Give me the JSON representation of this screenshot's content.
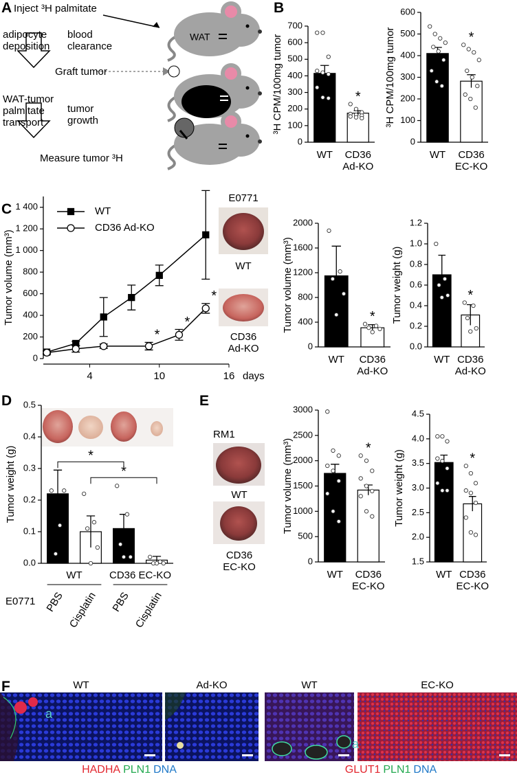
{
  "panel_labels": [
    "A",
    "B",
    "C",
    "D",
    "E",
    "F"
  ],
  "schematic": {
    "steps": [
      "Inject ³H palmitate",
      "Graft tumor",
      "Measure tumor ³H"
    ],
    "left_arrows": [
      "adipocyte deposition",
      "WAT-tumor palmitate transport"
    ],
    "right_arrows": [
      "blood clearance",
      "tumor growth"
    ],
    "wat": "WAT"
  },
  "photos": {
    "c_title": "E0771",
    "c_labels": [
      "WT",
      "CD36 Ad-KO"
    ],
    "e_title": "RM1",
    "e_labels": [
      "WT",
      "CD36 EC-KO"
    ]
  },
  "micrographs": {
    "labels": [
      "WT",
      "Ad-KO",
      "WT",
      "EC-KO"
    ],
    "inset": [
      "a",
      "a"
    ],
    "stains_left": [
      "HADHA",
      "PLN1",
      "DNA"
    ],
    "stains_right": [
      "GLUT1",
      "PLN1",
      "DNA"
    ],
    "stain_colors": [
      "#e3262e",
      "#22a94f",
      "#1e78c8"
    ]
  },
  "chart_data": [
    {
      "type": "bar",
      "ylabel": "³H CPM/100mg tumor",
      "categories": [
        "WT",
        "CD36 Ad-KO"
      ],
      "values": [
        415,
        175
      ],
      "errors": [
        48,
        15
      ],
      "points": [
        [
          660,
          660,
          515,
          430,
          420,
          410,
          330,
          270,
          265
        ],
        [
          230,
          200,
          180,
          170,
          165,
          160,
          155,
          150,
          145
        ]
      ],
      "colors": [
        "#000000",
        "#ffffff"
      ],
      "ylim": [
        0,
        700
      ],
      "yticks": [
        0,
        100,
        200,
        300,
        400,
        500,
        600,
        700
      ],
      "annotations": [
        "*"
      ]
    },
    {
      "type": "bar",
      "ylabel": "³H CPM/100mg tumor",
      "categories": [
        "WT",
        "CD36 EC-KO"
      ],
      "values": [
        410,
        282
      ],
      "errors": [
        28,
        30
      ],
      "points": [
        [
          535,
          500,
          480,
          460,
          440,
          420,
          380,
          330,
          280,
          260
        ],
        [
          450,
          430,
          415,
          380,
          330,
          300,
          260,
          220,
          200,
          160
        ]
      ],
      "colors": [
        "#000000",
        "#ffffff"
      ],
      "ylim": [
        0,
        600
      ],
      "yticks": [
        0,
        100,
        200,
        300,
        400,
        500,
        600
      ],
      "annotations": [
        "*"
      ]
    },
    {
      "type": "line",
      "ylabel": "Tumor volume (mm³)",
      "xlabel": "days",
      "xlim": [
        0,
        16
      ],
      "xticks": [
        4,
        10,
        16
      ],
      "ylim": [
        0,
        1500
      ],
      "yticks": [
        0,
        200,
        400,
        600,
        800,
        {
          "value": 1000,
          "label": "1 000"
        },
        {
          "value": 1200,
          "label": "1 200"
        },
        {
          "value": 1400,
          "label": "1 400"
        }
      ],
      "legend": "upper left",
      "series": [
        {
          "name": "WT",
          "color": "#000000",
          "marker": "square",
          "fill": "#000000",
          "x": [
            0.3,
            2.8,
            5.2,
            7.6,
            10,
            14
          ],
          "values": [
            60,
            140,
            385,
            565,
            770,
            1145
          ],
          "errors": [
            10,
            20,
            180,
            115,
            95,
            410
          ]
        },
        {
          "name": "CD36 Ad-KO",
          "color": "#000000",
          "marker": "circle",
          "fill": "#ffffff",
          "x": [
            0.3,
            2.8,
            5.2,
            9.1,
            11.7,
            14
          ],
          "values": [
            55,
            90,
            115,
            115,
            220,
            465
          ],
          "errors": [
            15,
            30,
            20,
            35,
            50,
            45
          ]
        }
      ],
      "annotations": [
        "*",
        "*",
        "*"
      ]
    },
    {
      "type": "bar",
      "ylabel": "Tumor volume (mm³)",
      "categories": [
        "WT",
        "CD36 Ad-KO"
      ],
      "values": [
        1150,
        310
      ],
      "errors": [
        480,
        50
      ],
      "points": [
        [
          1880,
          1220,
          1100,
          860,
          520
        ],
        [
          370,
          340,
          310,
          290,
          240
        ]
      ],
      "colors": [
        "#000000",
        "#ffffff"
      ],
      "ylim": [
        0,
        2000
      ],
      "yticks": [
        0,
        400,
        800,
        1200,
        1600,
        2000
      ],
      "annotations": [
        "*"
      ]
    },
    {
      "type": "bar",
      "ylabel": "Tumor weight (g)",
      "categories": [
        "WT",
        "CD36 Ad-KO"
      ],
      "values": [
        0.7,
        0.31
      ],
      "errors": [
        0.19,
        0.1
      ],
      "points": [
        [
          1.0,
          0.66,
          0.6,
          0.5,
          0.48
        ],
        [
          0.43,
          0.4,
          0.28,
          0.18,
          0.15
        ]
      ],
      "colors": [
        "#000000",
        "#ffffff"
      ],
      "ylim": [
        0,
        1.2
      ],
      "yticks": [
        {
          "value": 0,
          "label": "0.0"
        },
        0.2,
        0.4,
        0.6,
        0.8,
        {
          "value": 1,
          "label": "1.0"
        },
        1.2
      ],
      "annotations": [
        "*"
      ]
    },
    {
      "type": "bar",
      "ylabel": "Tumor weight (g)",
      "categories": [
        "PBS",
        "Cisplatin",
        "PBS",
        "Cisplatin"
      ],
      "groups": [
        "WT",
        "CD36 EC-KO"
      ],
      "row_label": "E0771",
      "values": [
        0.22,
        0.1,
        0.11,
        0.01
      ],
      "errors": [
        0.075,
        0.05,
        0.045,
        0.012
      ],
      "points": [
        [
          0.23,
          0.23,
          0.12,
          0.03
        ],
        [
          0.22,
          0.13,
          0.11,
          0.05,
          0.0
        ],
        [
          0.245,
          0.155,
          0.06,
          0.02,
          0.02
        ],
        [
          0.02,
          0.005,
          0.0,
          0.0,
          0.0
        ]
      ],
      "colors": [
        "#000000",
        "#ffffff",
        "#000000",
        "#ffffff"
      ],
      "ylim": [
        0,
        0.5
      ],
      "yticks": [
        {
          "value": 0,
          "label": "0.0"
        },
        0.1,
        0.2,
        0.3,
        0.4,
        0.5
      ],
      "annotations": [
        "*",
        "*"
      ]
    },
    {
      "type": "bar",
      "ylabel": "Tumor volume (mm³)",
      "categories": [
        "WT",
        "CD36 EC-KO"
      ],
      "values": [
        1750,
        1420
      ],
      "errors": [
        180,
        100
      ],
      "points": [
        [
          2970,
          2200,
          2100,
          1900,
          1800,
          1600,
          1350,
          1000,
          800
        ],
        [
          2100,
          2000,
          1800,
          1650,
          1500,
          1400,
          1300,
          1000,
          900
        ]
      ],
      "colors": [
        "#000000",
        "#ffffff"
      ],
      "ylim": [
        0,
        3000
      ],
      "yticks": [
        0,
        500,
        1000,
        1500,
        2000,
        2500,
        3000
      ],
      "annotations": [
        "*"
      ]
    },
    {
      "type": "bar",
      "ylabel": "Tumor weight (g)",
      "categories": [
        "WT",
        "CD36 EC-KO"
      ],
      "values": [
        3.52,
        2.68
      ],
      "errors": [
        0.15,
        0.15
      ],
      "points": [
        [
          4.05,
          4.05,
          3.95,
          3.6,
          3.55,
          3.4,
          3.1,
          2.95,
          2.95
        ],
        [
          3.45,
          3.3,
          3.1,
          2.95,
          2.9,
          2.7,
          2.4,
          2.1,
          2.05
        ]
      ],
      "colors": [
        "#000000",
        "#ffffff"
      ],
      "ylim": [
        1.5,
        4.5
      ],
      "yticks": [
        1.5,
        {
          "value": 2,
          "label": "2.0"
        },
        2.5,
        {
          "value": 3,
          "label": "3.0"
        },
        3.5,
        {
          "value": 4,
          "label": "4.0"
        },
        4.5
      ],
      "annotations": [
        "*"
      ]
    }
  ]
}
